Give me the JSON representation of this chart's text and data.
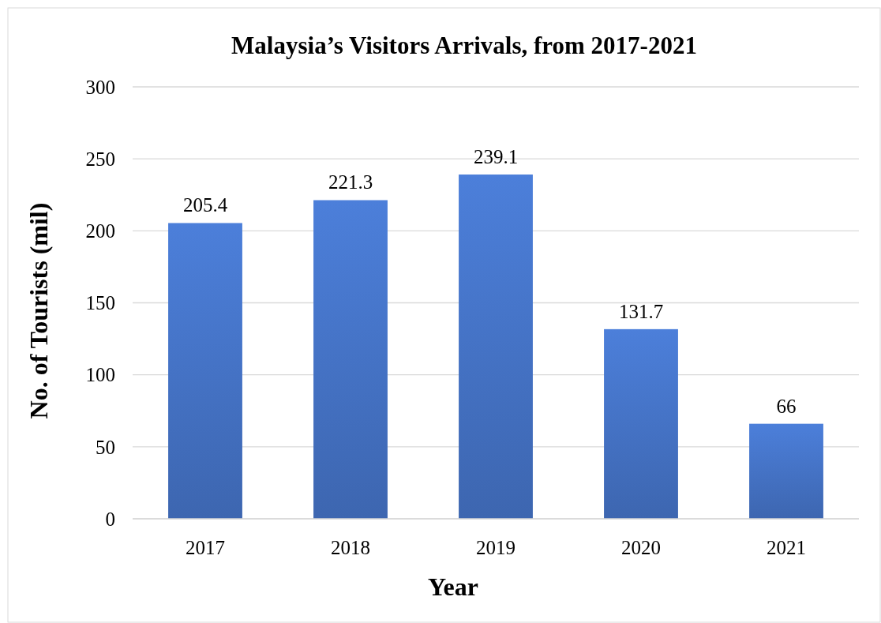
{
  "chart_data": {
    "type": "bar",
    "title": "Malaysia’s Visitors Arrivals, from 2017-2021",
    "xlabel": "Year",
    "ylabel": "No. of Tourists (mil)",
    "categories": [
      "2017",
      "2018",
      "2019",
      "2020",
      "2021"
    ],
    "values": [
      205.4,
      221.3,
      239.1,
      131.7,
      66
    ],
    "color": "#4472c4",
    "ylim": [
      0,
      300
    ],
    "yticks": [
      0,
      50,
      100,
      150,
      200,
      250,
      300
    ],
    "grid": "y",
    "data_labels": true
  }
}
